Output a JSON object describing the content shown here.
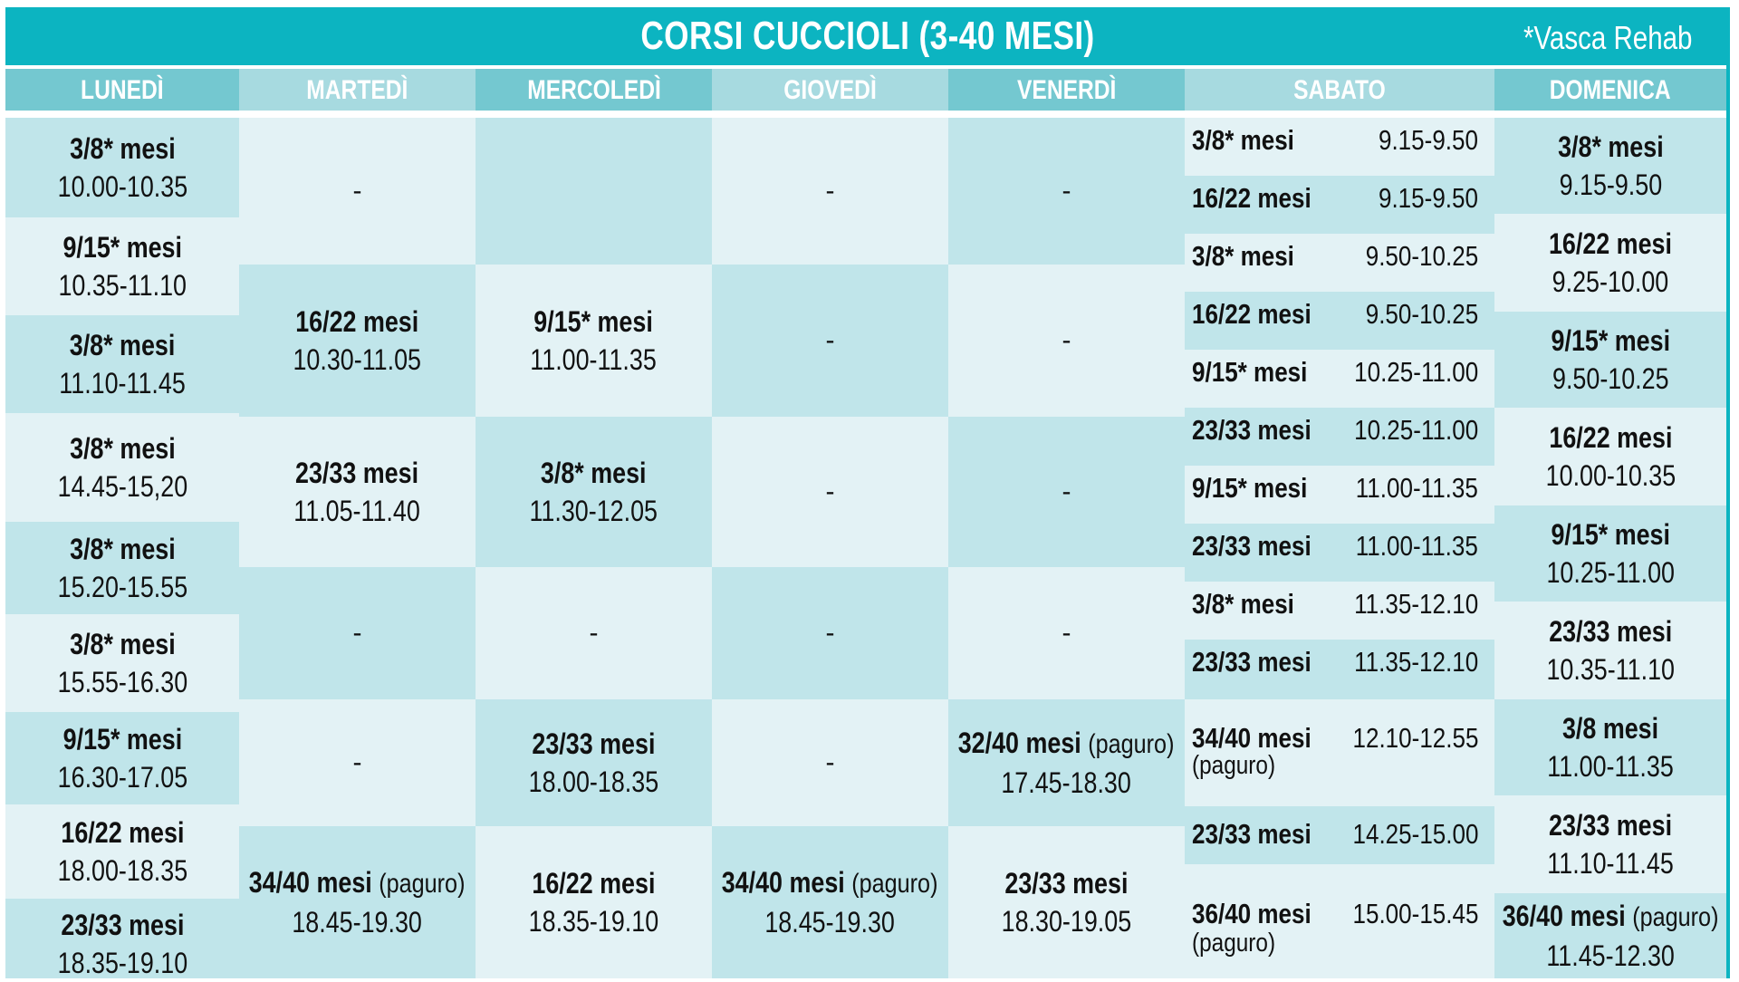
{
  "title": "CORSI CUCCIOLI (3-40 MESI)",
  "note": "*Vasca Rehab",
  "days": [
    "LUNEDÌ",
    "MARTEDÌ",
    "MERCOLEDÌ",
    "GIOVEDÌ",
    "VENERDÌ",
    "SABATO",
    "DOMENICA"
  ],
  "dash": "-",
  "paguro": "(paguro)",
  "lunedi": [
    {
      "group": "3/8* mesi",
      "time": "10.00-10.35"
    },
    {
      "group": "9/15* mesi",
      "time": "10.35-11.10"
    },
    {
      "group": "3/8* mesi",
      "time": "11.10-11.45"
    },
    {
      "group": "3/8* mesi",
      "time": "14.45-15,20"
    },
    {
      "group": "3/8* mesi",
      "time": "15.20-15.55"
    },
    {
      "group": "3/8* mesi",
      "time": "15.55-16.30"
    },
    {
      "group": "9/15* mesi",
      "time": "16.30-17.05"
    },
    {
      "group": "16/22 mesi",
      "time": "18.00-18.35"
    },
    {
      "group": "23/33 mesi",
      "time": "18.35-19.10"
    }
  ],
  "martedi": [
    {
      "group": "",
      "time": ""
    },
    {
      "group": "16/22 mesi",
      "time": "10.30-11.05"
    },
    {
      "group": "23/33 mesi",
      "time": "11.05-11.40"
    },
    {
      "group": "",
      "time": ""
    },
    {
      "group": "",
      "time": ""
    },
    {
      "group": "34/40 mesi",
      "time": "18.45-19.30"
    }
  ],
  "mercoledi": [
    {
      "group": "",
      "time": ""
    },
    {
      "group": "9/15* mesi",
      "time": "11.00-11.35"
    },
    {
      "group": "3/8* mesi",
      "time": "11.30-12.05"
    },
    {
      "group": "",
      "time": ""
    },
    {
      "group": "23/33 mesi",
      "time": "18.00-18.35"
    },
    {
      "group": "16/22 mesi",
      "time": "18.35-19.10"
    }
  ],
  "giovedi": [
    {
      "group": "",
      "time": ""
    },
    {
      "group": "",
      "time": ""
    },
    {
      "group": "",
      "time": ""
    },
    {
      "group": "",
      "time": ""
    },
    {
      "group": "",
      "time": ""
    },
    {
      "group": "34/40 mesi",
      "time": "18.45-19.30"
    }
  ],
  "venerdi": [
    {
      "group": "",
      "time": ""
    },
    {
      "group": "",
      "time": ""
    },
    {
      "group": "",
      "time": ""
    },
    {
      "group": "",
      "time": ""
    },
    {
      "group": "32/40 mesi",
      "time": "17.45-18.30"
    },
    {
      "group": "23/33 mesi",
      "time": "18.30-19.05"
    }
  ],
  "sabato": [
    {
      "group": "3/8* mesi",
      "time": "9.15-9.50"
    },
    {
      "group": "16/22 mesi",
      "time": "9.15-9.50"
    },
    {
      "group": "3/8* mesi",
      "time": "9.50-10.25"
    },
    {
      "group": "16/22 mesi",
      "time": "9.50-10.25"
    },
    {
      "group": "9/15* mesi",
      "time": "10.25-11.00"
    },
    {
      "group": "23/33 mesi",
      "time": "10.25-11.00"
    },
    {
      "group": "9/15* mesi",
      "time": "11.00-11.35"
    },
    {
      "group": "23/33 mesi",
      "time": "11.00-11.35"
    },
    {
      "group": "3/8* mesi",
      "time": "11.35-12.10"
    },
    {
      "group": "23/33 mesi",
      "time": "11.35-12.10"
    },
    {
      "group": "34/40 mesi",
      "time": "12.10-12.55"
    },
    {
      "group": "23/33 mesi",
      "time": "14.25-15.00"
    },
    {
      "group": "36/40 mesi",
      "time": "15.00-15.45"
    }
  ],
  "domenica": [
    {
      "group": "3/8* mesi",
      "time": "9.15-9.50"
    },
    {
      "group": "16/22 mesi",
      "time": "9.25-10.00"
    },
    {
      "group": "9/15* mesi",
      "time": "9.50-10.25"
    },
    {
      "group": "16/22 mesi",
      "time": "10.00-10.35"
    },
    {
      "group": "9/15* mesi",
      "time": "10.25-11.00"
    },
    {
      "group": "23/33 mesi",
      "time": "10.35-11.10"
    },
    {
      "group": "3/8 mesi",
      "time": "11.00-11.35"
    },
    {
      "group": "23/33 mesi",
      "time": "11.10-11.45"
    },
    {
      "group": "36/40 mesi",
      "time": "11.45-12.30"
    }
  ]
}
